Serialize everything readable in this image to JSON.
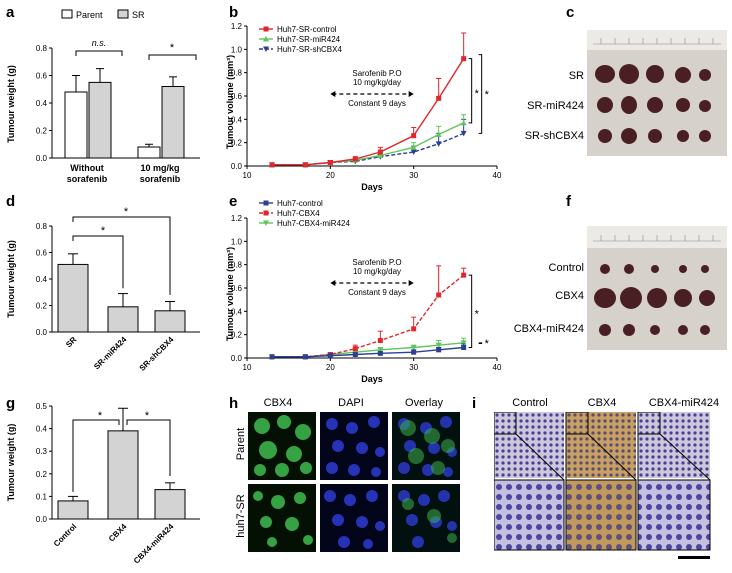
{
  "labels": {
    "a": "a",
    "b": "b",
    "c": "c",
    "d": "d",
    "e": "e",
    "f": "f",
    "g": "g",
    "h": "h",
    "i": "i"
  },
  "colors": {
    "red": "#e2262b",
    "green": "#5fc65b",
    "blue": "#2b3f95",
    "bar_fill": "#d3d3d3",
    "white_bar": "#ffffff"
  },
  "panel_a": {
    "type": "bar",
    "ylabel": "Tumour weight (g)",
    "yticks": [
      "0.0",
      "0.2",
      "0.4",
      "0.6",
      "0.8"
    ],
    "ylim": [
      0,
      0.8
    ],
    "legend": [
      "Parent",
      "SR"
    ],
    "groups": [
      {
        "label1": "Without",
        "label2": "sorafenib"
      },
      {
        "label1": "10 mg/kg",
        "label2": "sorafenib"
      }
    ],
    "series": [
      {
        "name": "Parent",
        "values": [
          0.48,
          0.08
        ],
        "errors": [
          0.12,
          0.02
        ]
      },
      {
        "name": "SR",
        "values": [
          0.55,
          0.52
        ],
        "errors": [
          0.1,
          0.07
        ]
      }
    ],
    "annotations": [
      "n.s.",
      "*"
    ]
  },
  "panel_b": {
    "type": "line",
    "xlabel": "Days",
    "ylabel": "Tumour volume (mm³)",
    "xticks": [
      "10",
      "20",
      "30",
      "40"
    ],
    "xlim": [
      10,
      40
    ],
    "yticks": [
      "0.0",
      "0.2",
      "0.4",
      "0.6",
      "0.8",
      "1.0",
      "1.2"
    ],
    "ylim": [
      0,
      1.2
    ],
    "x": [
      13,
      17,
      20,
      23,
      26,
      30,
      33,
      36
    ],
    "series": [
      {
        "name": "Huh7-SR-control",
        "values": [
          0.01,
          0.01,
          0.03,
          0.06,
          0.12,
          0.26,
          0.58,
          0.92
        ],
        "errors": [
          0,
          0,
          0.01,
          0.02,
          0.04,
          0.07,
          0.17,
          0.22
        ]
      },
      {
        "name": "Huh7-SR-miR424",
        "values": [
          0.01,
          0.01,
          0.03,
          0.05,
          0.09,
          0.16,
          0.27,
          0.37
        ],
        "errors": [
          0,
          0,
          0.01,
          0.02,
          0.03,
          0.04,
          0.07,
          0.07
        ]
      },
      {
        "name": "Huh7-SR-shCBX4",
        "values": [
          0.01,
          0.01,
          0.03,
          0.04,
          0.08,
          0.12,
          0.19,
          0.28
        ],
        "errors": [
          0,
          0,
          0.01,
          0.02,
          0.03,
          0.05,
          0.09,
          0.12
        ]
      }
    ],
    "annot_line1": "Sarofenib P.O",
    "annot_line2": "10 mg/kg/day",
    "annot_line3": "Constant 9 days",
    "sig": [
      "*",
      "*"
    ]
  },
  "panel_c": {
    "rows": [
      "SR",
      "SR-miR424",
      "SR-shCBX4"
    ]
  },
  "panel_d": {
    "type": "bar",
    "ylabel": "Tumour weight (g)",
    "yticks": [
      "0.0",
      "0.2",
      "0.4",
      "0.6",
      "0.8"
    ],
    "ylim": [
      0,
      0.8
    ],
    "categories": [
      "SR",
      "SR-miR424",
      "SR-shCBX4"
    ],
    "values": [
      0.51,
      0.19,
      0.16
    ],
    "errors": [
      0.08,
      0.1,
      0.07
    ],
    "sig": [
      "*",
      "*"
    ]
  },
  "panel_e": {
    "type": "line",
    "xlabel": "Days",
    "ylabel": "Tumour volume (mm³)",
    "xticks": [
      "10",
      "20",
      "30",
      "40"
    ],
    "xlim": [
      10,
      40
    ],
    "yticks": [
      "0.0",
      "0.2",
      "0.4",
      "0.6",
      "0.8",
      "1.0",
      "1.2"
    ],
    "ylim": [
      0,
      1.2
    ],
    "x": [
      13,
      17,
      20,
      23,
      26,
      30,
      33,
      36
    ],
    "series": [
      {
        "name": "Huh7-control",
        "values": [
          0.01,
          0.01,
          0.02,
          0.03,
          0.04,
          0.05,
          0.07,
          0.09
        ],
        "errors": [
          0,
          0,
          0.01,
          0.01,
          0.01,
          0.02,
          0.02,
          0.03
        ]
      },
      {
        "name": "Huh7-CBX4",
        "values": [
          0.01,
          0.01,
          0.03,
          0.08,
          0.15,
          0.25,
          0.54,
          0.71
        ],
        "errors": [
          0,
          0,
          0.01,
          0.03,
          0.08,
          0.1,
          0.25,
          0.06
        ]
      },
      {
        "name": "Huh7-CBX4-miR424",
        "values": [
          0.01,
          0.01,
          0.03,
          0.05,
          0.07,
          0.09,
          0.11,
          0.13
        ],
        "errors": [
          0,
          0,
          0.01,
          0.01,
          0.02,
          0.02,
          0.04,
          0.04
        ]
      }
    ],
    "annot_line1": "Sarofenib P.O",
    "annot_line2": "10 mg/kg/day",
    "annot_line3": "Constant 9 days",
    "sig": [
      "*",
      "*"
    ]
  },
  "panel_f": {
    "rows": [
      "Control",
      "CBX4",
      "CBX4-miR424"
    ]
  },
  "panel_g": {
    "type": "bar",
    "ylabel": "Tumour weight (g)",
    "yticks": [
      "0.0",
      "0.1",
      "0.2",
      "0.3",
      "0.4",
      "0.5"
    ],
    "ylim": [
      0,
      0.5
    ],
    "categories": [
      "Control",
      "CBX4",
      "CBX4-miR424"
    ],
    "values": [
      0.08,
      0.39,
      0.13
    ],
    "errors": [
      0.02,
      0.1,
      0.03
    ],
    "sig": [
      "*",
      "*"
    ]
  },
  "panel_h": {
    "columns": [
      "CBX4",
      "DAPI",
      "Overlay"
    ],
    "rows": [
      "Parent",
      "huh7-SR"
    ]
  },
  "panel_i": {
    "columns": [
      "Control",
      "CBX4",
      "CBX4-miR424"
    ]
  }
}
